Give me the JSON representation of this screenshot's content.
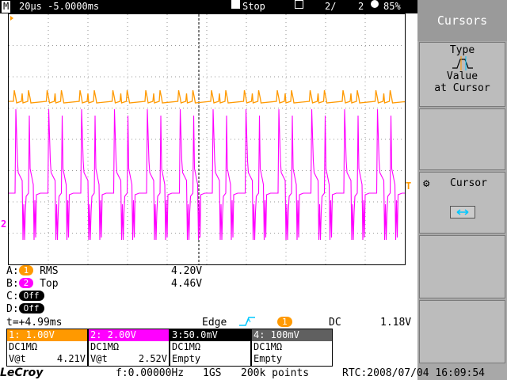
{
  "topbar": {
    "mode_letter": "M",
    "timebase": "20µs -5.0000ms",
    "run_state": "Stop",
    "page_current": "2/",
    "page_total": "2",
    "battery": "85%"
  },
  "menu": {
    "title": "Cursors",
    "type_label": "Type",
    "type_value_line1": "Value",
    "type_value_line2": "at Cursor",
    "cursor_label": "Cursor"
  },
  "measurements": [
    {
      "slot": "A:",
      "channel": "1",
      "name": "RMS",
      "value": "4.20V",
      "color": "#ff9900"
    },
    {
      "slot": "B:",
      "channel": "2",
      "name": "Top",
      "value": "4.46V",
      "color": "#ff00ff"
    },
    {
      "slot": "C:",
      "channel": "Off",
      "name": "",
      "value": "",
      "color": "#000000"
    },
    {
      "slot": "D:",
      "channel": "Off",
      "name": "",
      "value": "",
      "color": "#000000"
    }
  ],
  "trigger": {
    "time": "t=+4.99ms",
    "type": "Edge",
    "source": "1",
    "coupling": "DC",
    "level": "1.18V"
  },
  "channels": [
    {
      "header": "1: 1.00V",
      "coupling": "DC1MΩ",
      "reading_label": "V@t",
      "reading_value": "4.21V",
      "color": "#ff9900",
      "text_color": "#ffffff"
    },
    {
      "header": "2: 2.00V",
      "coupling": "DC1MΩ",
      "reading_label": "V@t",
      "reading_value": "2.52V",
      "color": "#ff00ff",
      "text_color": "#ffffff"
    },
    {
      "header": "3:50.0mV",
      "coupling": "DC1MΩ",
      "reading_label": "Empty",
      "reading_value": "",
      "color": "#000000",
      "text_color": "#ffffff"
    },
    {
      "header": "4: 100mV",
      "coupling": "DC1MΩ",
      "reading_label": "Empty",
      "reading_value": "",
      "color": "#606060",
      "text_color": "#ffffff"
    }
  ],
  "bottombar": {
    "brand": "LeCroy",
    "frequency": "f:0.00000Hz",
    "sample_rate": "1GS",
    "points": "200k points",
    "rtc": "RTC:2008/07/04 16:09:54"
  },
  "markers": {
    "ch2_marker": "2",
    "trigger_level_marker": "T"
  },
  "colors": {
    "ch1": "#ff9900",
    "ch2": "#ff00ff",
    "cursor_cyan": "#00c8ff"
  }
}
